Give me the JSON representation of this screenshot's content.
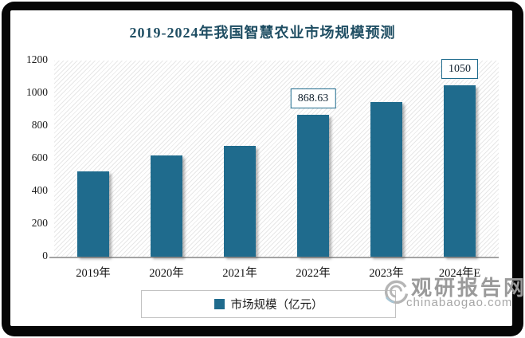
{
  "title": "2019-2024年我国智慧农业市场规模预测",
  "chart_data": {
    "type": "bar",
    "title": "2019-2024年我国智慧农业市场规模预测",
    "categories": [
      "2019年",
      "2020年",
      "2021年",
      "2022年",
      "2023年",
      "2024年E"
    ],
    "series": [
      {
        "name": "市场规模（亿元）",
        "values": [
          520,
          620,
          680,
          868.63,
          945,
          1050
        ]
      }
    ],
    "data_labels": [
      "",
      "",
      "",
      "868.63",
      "",
      "1050"
    ],
    "xlabel": "",
    "ylabel": "",
    "ylim": [
      0,
      1200
    ],
    "yticks": [
      0,
      200,
      400,
      600,
      800,
      1000,
      1200
    ],
    "grid": false,
    "legend_position": "bottom",
    "bar_color": "#1f6b8d",
    "plot_background": "diagonal-hatch"
  },
  "legend": {
    "items": [
      {
        "label": "市场规模（亿元）",
        "color": "#1f6b8d"
      }
    ]
  },
  "watermark": {
    "site_name": "观研报告网",
    "site_domain": "chinabaogao.com"
  },
  "colors": {
    "title": "#1f4e63",
    "bar": "#1f6b8d",
    "axis_line": "#a3a3a3",
    "label_box_border": "#1f6b8d",
    "watermark_text": "#9a9a9a",
    "frame": "#060606"
  }
}
